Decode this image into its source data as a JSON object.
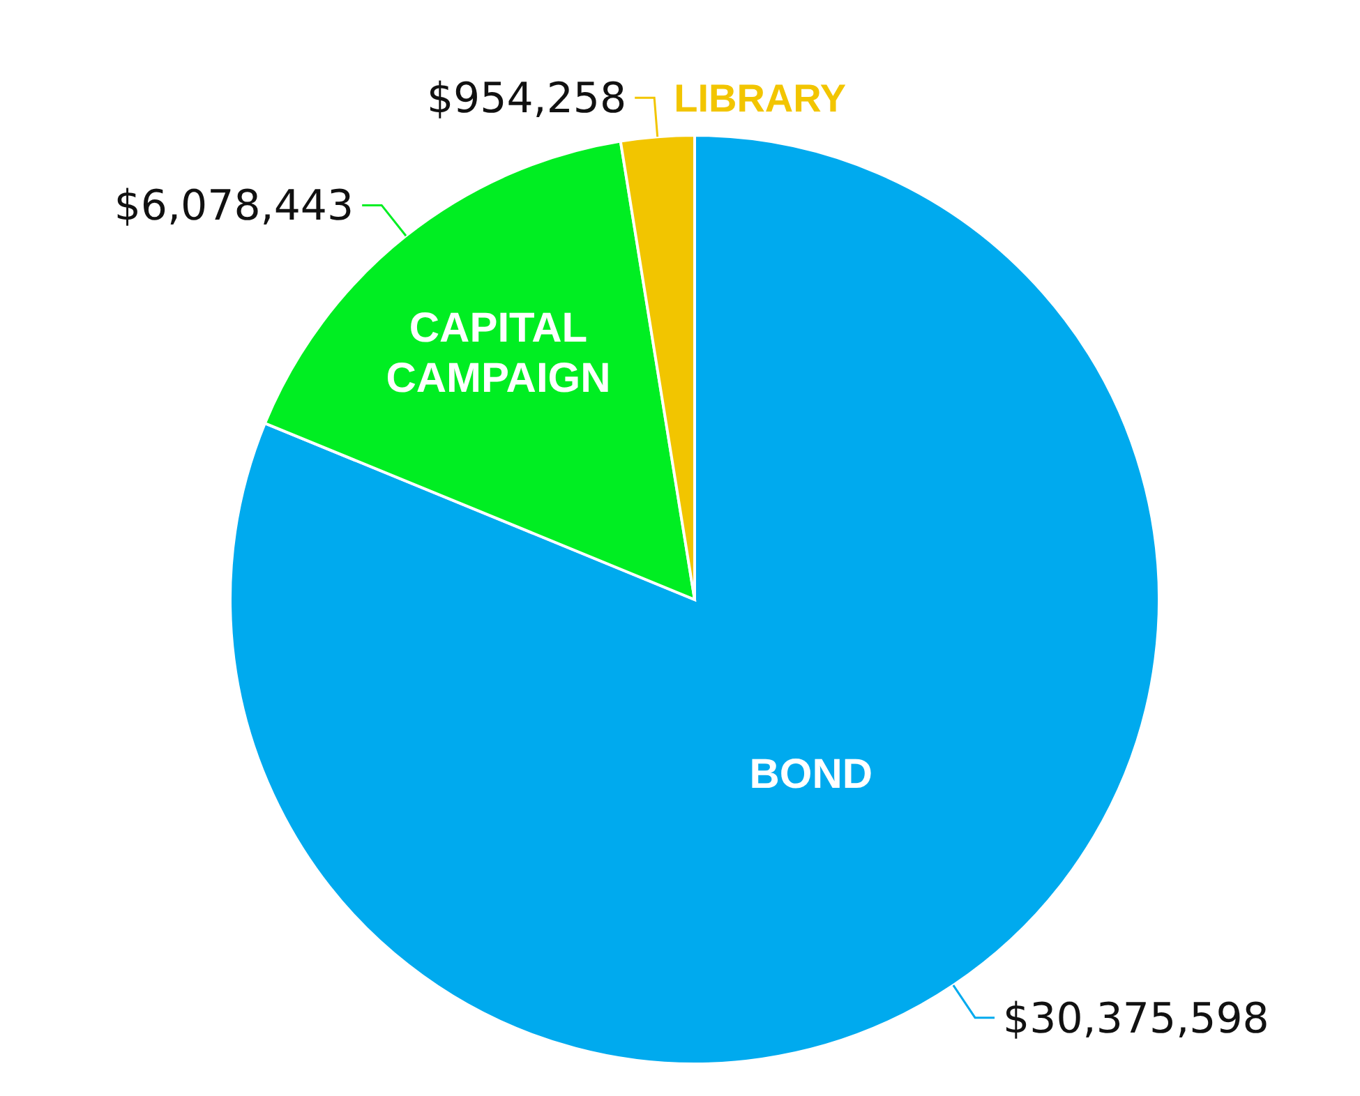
{
  "chart_data": {
    "type": "pie",
    "categories": [
      "BOND",
      "CAPITAL CAMPAIGN",
      "LIBRARY"
    ],
    "values": [
      30375598,
      6078443,
      954258
    ],
    "colors": [
      "#00aaee",
      "#00ee22",
      "#f2c500"
    ],
    "value_labels": [
      "$30,375,598",
      "$6,078,443",
      "$954,258"
    ],
    "legend": false
  }
}
